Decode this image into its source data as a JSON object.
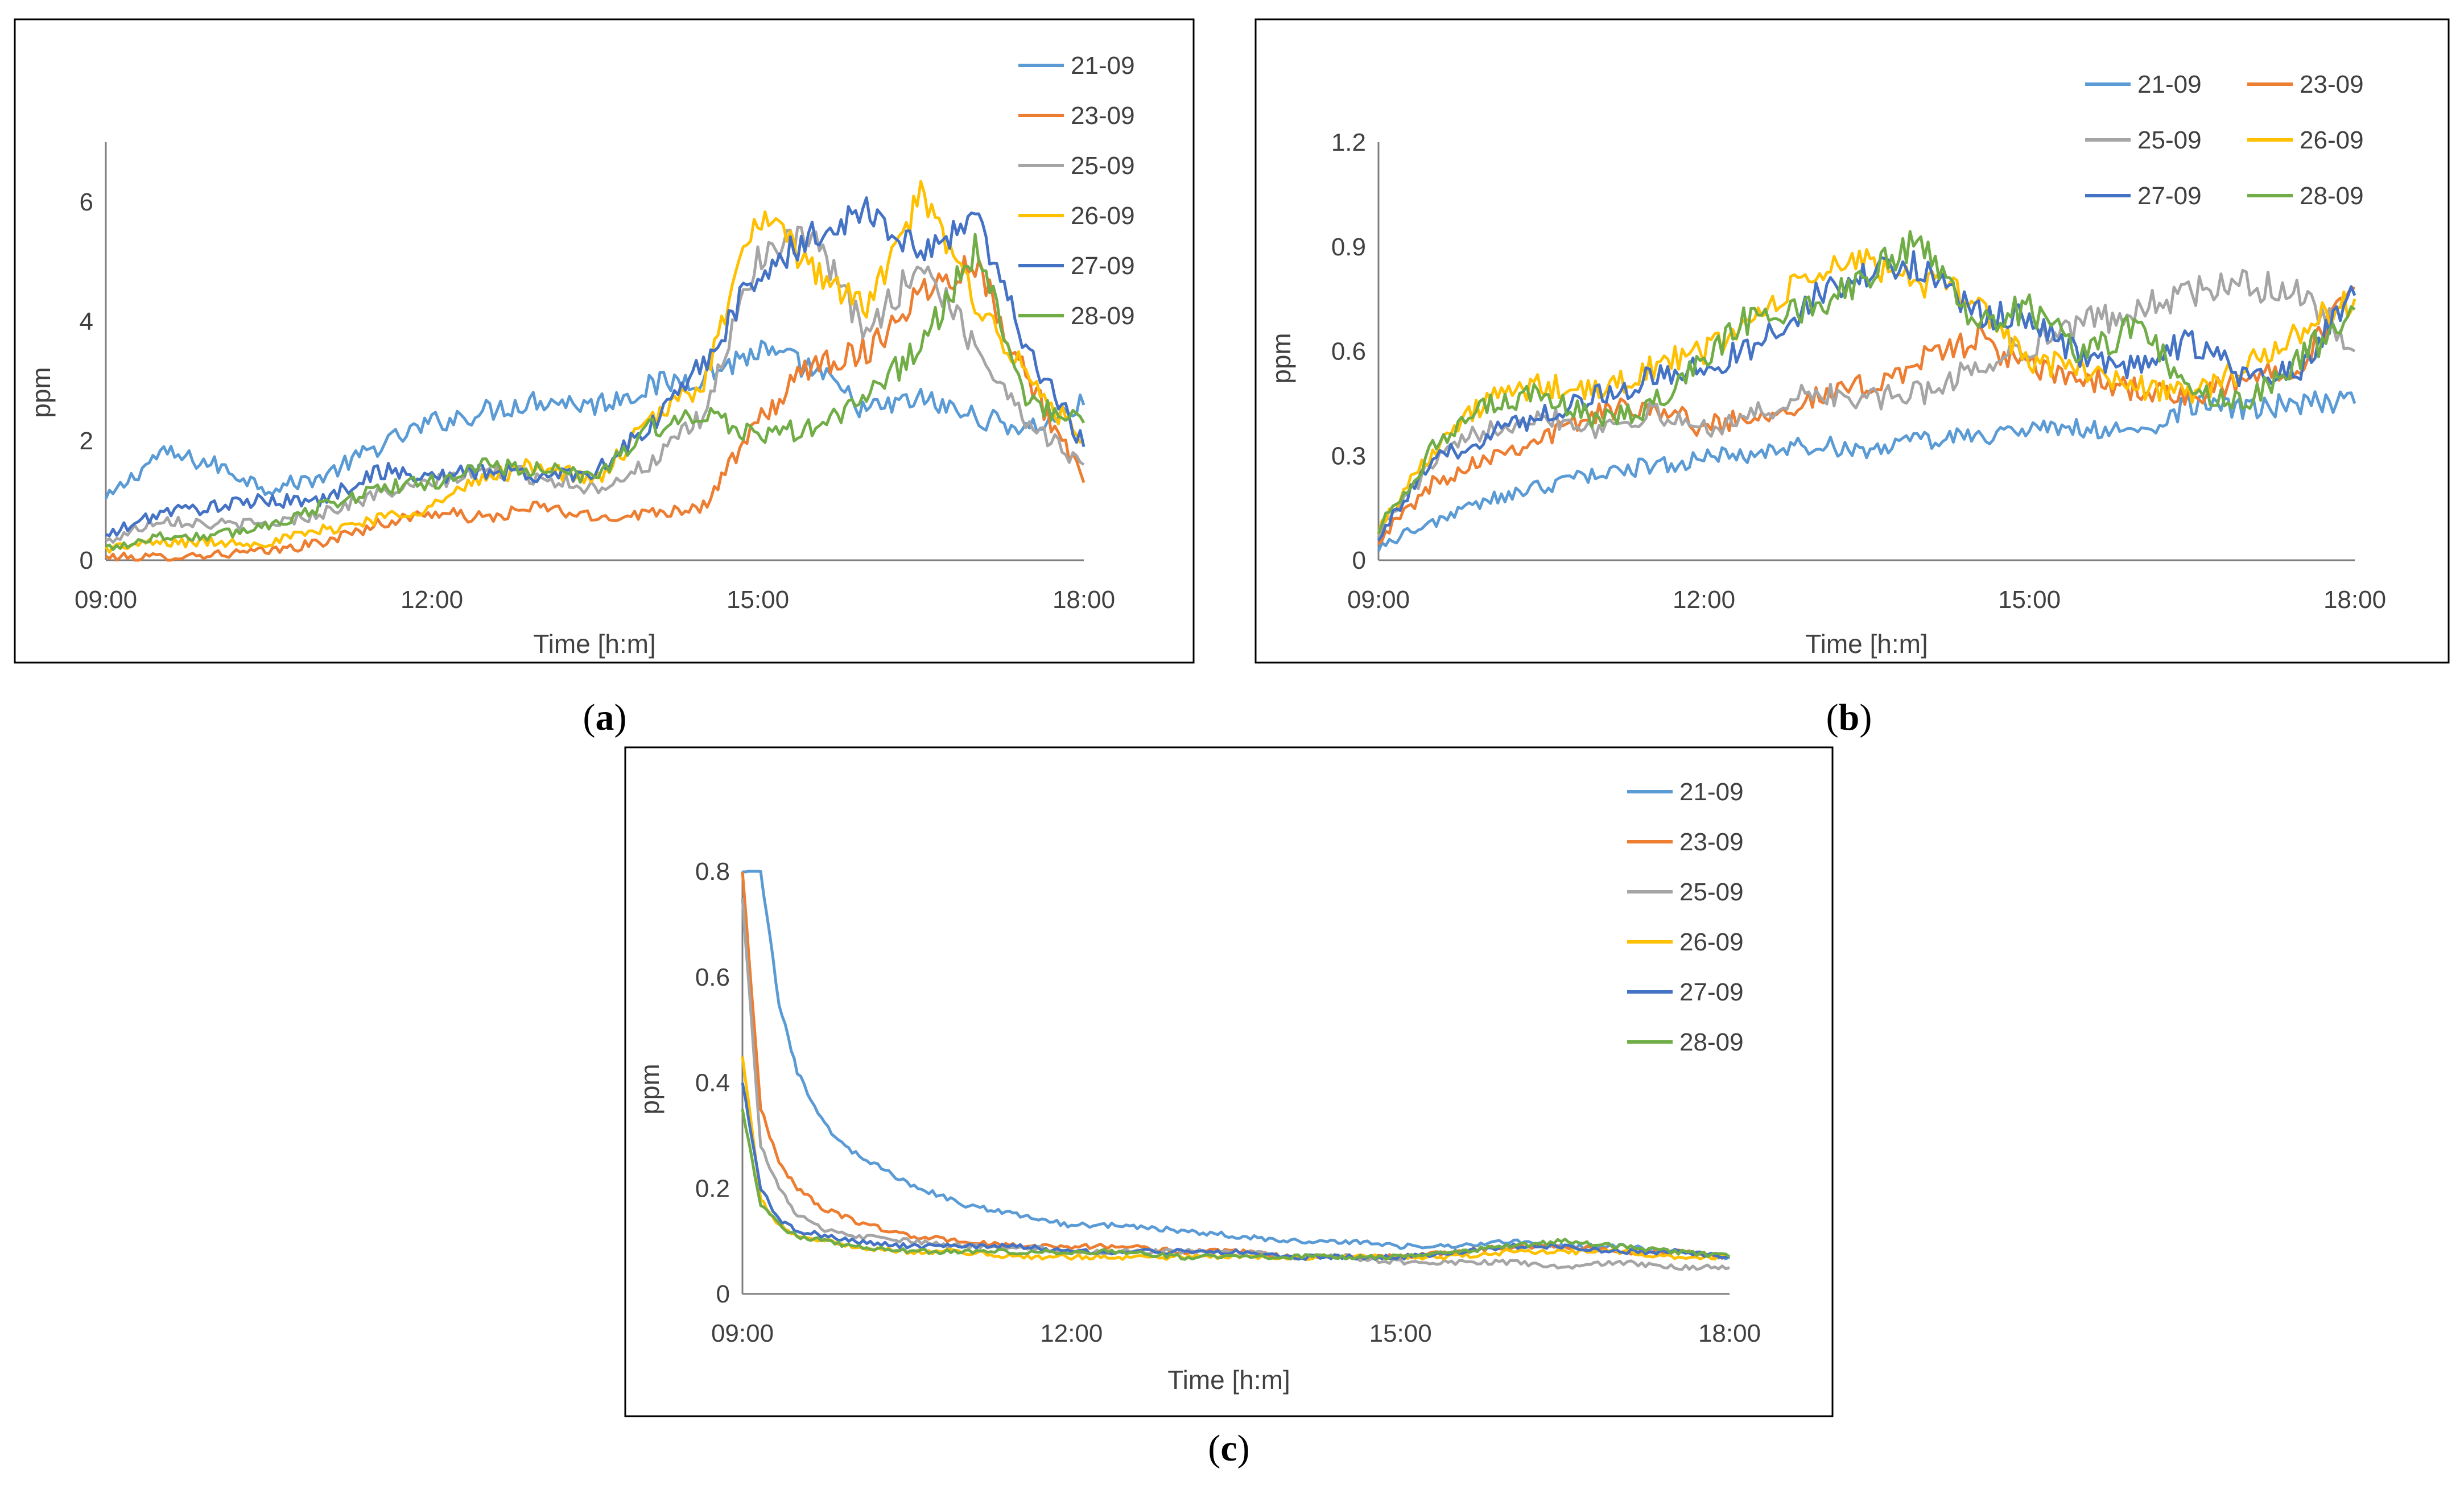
{
  "colors": {
    "21-09": "#5B9BD5",
    "23-09": "#ED7D31",
    "25-09": "#A5A5A5",
    "26-09": "#FFC000",
    "27-09": "#4472C4",
    "28-09": "#70AD47"
  },
  "chart_data": [
    {
      "type": "line",
      "panel_label": "a",
      "xlabel": "Time [h:m]",
      "ylabel": "ppm",
      "x_ticks": [
        "09:00",
        "12:00",
        "15:00",
        "18:00"
      ],
      "xlim": [
        "09:00",
        "18:00"
      ],
      "ylim": [
        0,
        7
      ],
      "y_ticks": [
        "0",
        "2",
        "4",
        "6"
      ],
      "y_tick_values": [
        0,
        2,
        4,
        6
      ],
      "legend_position": "right",
      "legend_columns": 1,
      "grid": false,
      "x": [
        "09:00",
        "09:30",
        "10:00",
        "10:30",
        "11:00",
        "11:30",
        "12:00",
        "12:30",
        "13:00",
        "13:30",
        "14:00",
        "14:30",
        "15:00",
        "15:30",
        "16:00",
        "16:30",
        "17:00",
        "17:30",
        "18:00"
      ],
      "series": [
        {
          "name": "21-09",
          "values": [
            1.0,
            1.8,
            1.6,
            1.2,
            1.4,
            1.9,
            2.3,
            2.5,
            2.7,
            2.6,
            2.9,
            3.1,
            3.5,
            3.2,
            2.5,
            2.7,
            2.4,
            2.2,
            2.6
          ]
        },
        {
          "name": "23-09",
          "values": [
            0.05,
            0.05,
            0.1,
            0.15,
            0.3,
            0.6,
            0.8,
            0.7,
            0.9,
            0.7,
            0.8,
            0.9,
            2.3,
            3.3,
            3.5,
            4.5,
            5.0,
            3.0,
            1.3
          ]
        },
        {
          "name": "25-09",
          "values": [
            0.3,
            0.7,
            0.6,
            0.6,
            0.8,
            1.1,
            1.3,
            1.5,
            1.4,
            1.2,
            1.6,
            2.4,
            5.1,
            5.4,
            3.8,
            5.0,
            3.6,
            2.3,
            1.6
          ]
        },
        {
          "name": "26-09",
          "values": [
            0.2,
            0.3,
            0.3,
            0.3,
            0.5,
            0.7,
            0.9,
            1.4,
            1.6,
            1.3,
            2.3,
            3.0,
            5.8,
            4.9,
            4.2,
            6.1,
            4.4,
            3.0,
            2.0
          ]
        },
        {
          "name": "27-09",
          "values": [
            0.4,
            0.8,
            0.9,
            1.0,
            1.0,
            1.5,
            1.4,
            1.5,
            1.4,
            1.5,
            2.2,
            3.3,
            4.8,
            5.4,
            5.9,
            5.1,
            5.8,
            3.5,
            1.9
          ]
        },
        {
          "name": "28-09",
          "values": [
            0.2,
            0.4,
            0.4,
            0.6,
            0.9,
            1.2,
            1.3,
            1.6,
            1.5,
            1.4,
            2.2,
            2.4,
            2.1,
            2.2,
            2.7,
            3.6,
            5.2,
            2.6,
            2.3
          ]
        }
      ]
    },
    {
      "type": "line",
      "panel_label": "b",
      "xlabel": "Time [h:m]",
      "ylabel": "ppm",
      "x_ticks": [
        "09:00",
        "12:00",
        "15:00",
        "18:00"
      ],
      "xlim": [
        "09:00",
        "18:00"
      ],
      "ylim": [
        0,
        1.2
      ],
      "y_ticks": [
        "0",
        "0.3",
        "0.6",
        "0.9",
        "1.2"
      ],
      "y_tick_values": [
        0,
        0.3,
        0.6,
        0.9,
        1.2
      ],
      "legend_position": "top-right",
      "legend_columns": 2,
      "grid": false,
      "x": [
        "09:00",
        "09:30",
        "10:00",
        "10:30",
        "11:00",
        "11:30",
        "12:00",
        "12:30",
        "13:00",
        "13:30",
        "14:00",
        "14:30",
        "15:00",
        "15:30",
        "16:00",
        "16:30",
        "17:00",
        "17:30",
        "18:00"
      ],
      "series": [
        {
          "name": "21-09",
          "values": [
            0.04,
            0.11,
            0.17,
            0.21,
            0.25,
            0.27,
            0.29,
            0.31,
            0.33,
            0.32,
            0.34,
            0.36,
            0.37,
            0.38,
            0.36,
            0.45,
            0.43,
            0.45,
            0.45
          ]
        },
        {
          "name": "23-09",
          "values": [
            0.06,
            0.22,
            0.3,
            0.35,
            0.42,
            0.45,
            0.38,
            0.42,
            0.46,
            0.5,
            0.57,
            0.64,
            0.55,
            0.52,
            0.49,
            0.46,
            0.52,
            0.57,
            0.78
          ]
        },
        {
          "name": "25-09",
          "values": [
            0.08,
            0.28,
            0.38,
            0.42,
            0.38,
            0.42,
            0.38,
            0.42,
            0.48,
            0.46,
            0.48,
            0.55,
            0.62,
            0.68,
            0.72,
            0.77,
            0.79,
            0.77,
            0.6
          ]
        },
        {
          "name": "26-09",
          "values": [
            0.09,
            0.32,
            0.46,
            0.5,
            0.48,
            0.55,
            0.6,
            0.7,
            0.82,
            0.86,
            0.8,
            0.75,
            0.57,
            0.55,
            0.5,
            0.48,
            0.55,
            0.66,
            0.75
          ]
        },
        {
          "name": "27-09",
          "values": [
            0.07,
            0.28,
            0.36,
            0.42,
            0.47,
            0.52,
            0.55,
            0.62,
            0.75,
            0.82,
            0.85,
            0.7,
            0.7,
            0.58,
            0.55,
            0.63,
            0.52,
            0.55,
            0.76
          ]
        },
        {
          "name": "28-09",
          "values": [
            0.09,
            0.32,
            0.44,
            0.48,
            0.4,
            0.44,
            0.58,
            0.72,
            0.72,
            0.82,
            0.92,
            0.68,
            0.73,
            0.58,
            0.68,
            0.48,
            0.45,
            0.58,
            0.72
          ]
        }
      ]
    },
    {
      "type": "line",
      "panel_label": "c",
      "xlabel": "Time [h:m]",
      "ylabel": "ppm",
      "x_ticks": [
        "09:00",
        "12:00",
        "15:00",
        "18:00"
      ],
      "xlim": [
        "09:00",
        "18:00"
      ],
      "ylim": [
        0,
        0.8
      ],
      "y_ticks": [
        "0",
        "0.2",
        "0.4",
        "0.6",
        "0.8"
      ],
      "y_tick_values": [
        0,
        0.2,
        0.4,
        0.6,
        0.8
      ],
      "legend_position": "right",
      "legend_columns": 1,
      "grid": false,
      "x": [
        "09:00",
        "09:10",
        "09:20",
        "09:30",
        "09:45",
        "10:00",
        "10:30",
        "11:00",
        "11:30",
        "12:00",
        "12:30",
        "13:00",
        "13:30",
        "14:00",
        "14:30",
        "15:00",
        "15:30",
        "16:00",
        "16:30",
        "17:00",
        "17:30",
        "18:00"
      ],
      "series": [
        {
          "name": "21-09",
          "values": [
            0.8,
            0.8,
            0.55,
            0.42,
            0.32,
            0.27,
            0.21,
            0.17,
            0.15,
            0.13,
            0.13,
            0.12,
            0.11,
            0.1,
            0.1,
            0.09,
            0.09,
            0.1,
            0.09,
            0.09,
            0.08,
            0.07
          ]
        },
        {
          "name": "23-09",
          "values": [
            0.8,
            0.35,
            0.25,
            0.2,
            0.16,
            0.14,
            0.11,
            0.1,
            0.09,
            0.09,
            0.09,
            0.08,
            0.08,
            0.07,
            0.07,
            0.07,
            0.08,
            0.09,
            0.09,
            0.08,
            0.08,
            0.07
          ]
        },
        {
          "name": "25-09",
          "values": [
            0.75,
            0.28,
            0.2,
            0.15,
            0.12,
            0.11,
            0.1,
            0.09,
            0.09,
            0.08,
            0.08,
            0.08,
            0.08,
            0.07,
            0.07,
            0.06,
            0.06,
            0.06,
            0.05,
            0.06,
            0.05,
            0.05
          ]
        },
        {
          "name": "26-09",
          "values": [
            0.45,
            0.18,
            0.13,
            0.11,
            0.1,
            0.09,
            0.08,
            0.08,
            0.07,
            0.07,
            0.07,
            0.07,
            0.07,
            0.07,
            0.07,
            0.07,
            0.07,
            0.08,
            0.08,
            0.08,
            0.07,
            0.07
          ]
        },
        {
          "name": "27-09",
          "values": [
            0.4,
            0.2,
            0.14,
            0.12,
            0.11,
            0.1,
            0.09,
            0.09,
            0.09,
            0.08,
            0.08,
            0.08,
            0.08,
            0.07,
            0.07,
            0.07,
            0.08,
            0.09,
            0.09,
            0.08,
            0.08,
            0.07
          ]
        },
        {
          "name": "28-09",
          "values": [
            0.35,
            0.17,
            0.13,
            0.11,
            0.1,
            0.09,
            0.08,
            0.08,
            0.08,
            0.08,
            0.08,
            0.07,
            0.07,
            0.07,
            0.07,
            0.07,
            0.08,
            0.09,
            0.1,
            0.09,
            0.08,
            0.07
          ]
        }
      ]
    }
  ]
}
